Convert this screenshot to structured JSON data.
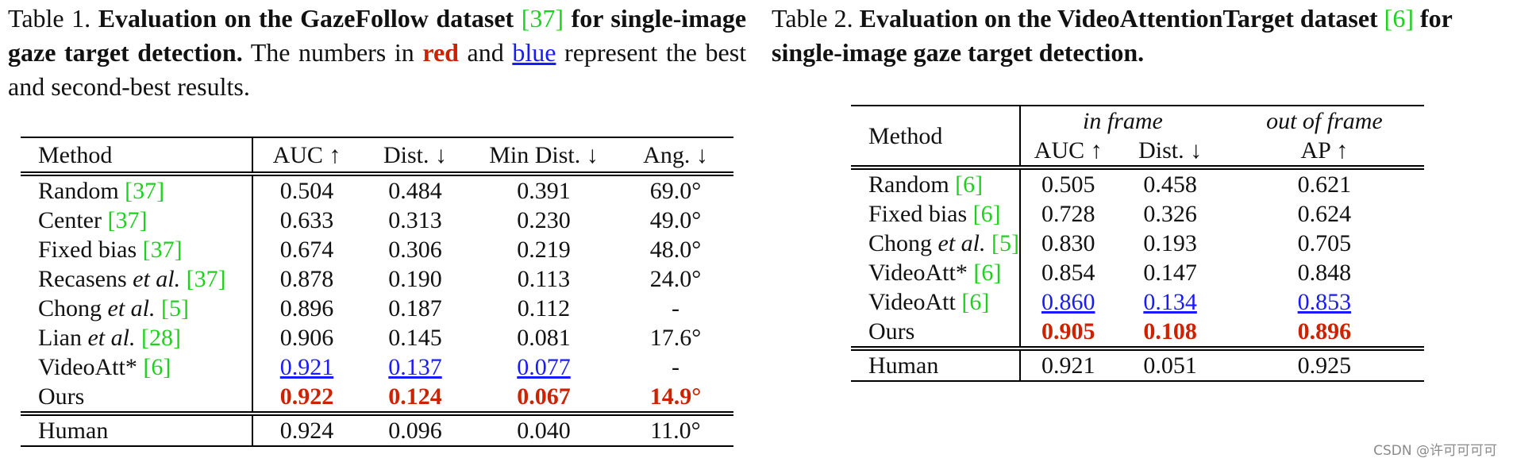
{
  "table1": {
    "caption": {
      "label": "Table 1.",
      "title_bold": "Evaluation on the GazeFollow dataset",
      "cite": "[37]",
      "title_bold_2": "for single-image gaze target detection.",
      "text_1": "The numbers in",
      "red_word": "red",
      "text_2": "and",
      "blue_word": "blue",
      "text_3": "represent the best and second-best results."
    },
    "headers": [
      "Method",
      "AUC ↑",
      "Dist. ↓",
      "Min Dist. ↓",
      "Ang. ↓"
    ],
    "rows": [
      {
        "name": "Random",
        "italic": "",
        "cite": "[37]",
        "auc": "0.504",
        "dist": "0.484",
        "min": "0.391",
        "ang": "69.0°"
      },
      {
        "name": "Center",
        "italic": "",
        "cite": "[37]",
        "auc": "0.633",
        "dist": "0.313",
        "min": "0.230",
        "ang": "49.0°"
      },
      {
        "name": "Fixed bias",
        "italic": "",
        "cite": "[37]",
        "auc": "0.674",
        "dist": "0.306",
        "min": "0.219",
        "ang": "48.0°"
      },
      {
        "name": "Recasens",
        "italic": "et al.",
        "cite": "[37]",
        "auc": "0.878",
        "dist": "0.190",
        "min": "0.113",
        "ang": "24.0°"
      },
      {
        "name": "Chong",
        "italic": "et al.",
        "cite": "[5]",
        "auc": "0.896",
        "dist": "0.187",
        "min": "0.112",
        "ang": "-"
      },
      {
        "name": "Lian",
        "italic": "et al.",
        "cite": "[28]",
        "auc": "0.906",
        "dist": "0.145",
        "min": "0.081",
        "ang": "17.6°"
      },
      {
        "name": "VideoAtt*",
        "italic": "",
        "cite": "[6]",
        "auc": "0.921",
        "dist": "0.137",
        "min": "0.077",
        "ang": "-"
      },
      {
        "name": "Ours",
        "italic": "",
        "cite": "",
        "auc": "0.922",
        "dist": "0.124",
        "min": "0.067",
        "ang": "14.9°"
      }
    ],
    "human": {
      "name": "Human",
      "auc": "0.924",
      "dist": "0.096",
      "min": "0.040",
      "ang": "11.0°"
    }
  },
  "table2": {
    "caption": {
      "label": "Table 2.",
      "title_bold": "Evaluation on the VideoAttentionTarget dataset",
      "cite": "[6]",
      "title_bold_2": "for single-image gaze target detection."
    },
    "group_headers": [
      "in frame",
      "out of frame"
    ],
    "headers": [
      "Method",
      "AUC ↑",
      "Dist. ↓",
      "AP ↑"
    ],
    "rows": [
      {
        "name": "Random",
        "italic": "",
        "cite": "[6]",
        "auc": "0.505",
        "dist": "0.458",
        "ap": "0.621"
      },
      {
        "name": "Fixed bias",
        "italic": "",
        "cite": "[6]",
        "auc": "0.728",
        "dist": "0.326",
        "ap": "0.624"
      },
      {
        "name": "Chong",
        "italic": "et al.",
        "cite": "[5]",
        "auc": "0.830",
        "dist": "0.193",
        "ap": "0.705"
      },
      {
        "name": "VideoAtt*",
        "italic": "",
        "cite": "[6]",
        "auc": "0.854",
        "dist": "0.147",
        "ap": "0.848"
      },
      {
        "name": "VideoAtt",
        "italic": "",
        "cite": "[6]",
        "auc": "0.860",
        "dist": "0.134",
        "ap": "0.853"
      },
      {
        "name": "Ours",
        "italic": "",
        "cite": "",
        "auc": "0.905",
        "dist": "0.108",
        "ap": "0.896"
      }
    ],
    "human": {
      "name": "Human",
      "auc": "0.921",
      "dist": "0.051",
      "ap": "0.925"
    }
  },
  "watermark": "CSDN @许可可可可",
  "colors": {
    "best": "#cc2200",
    "second": "#1a1aff",
    "citation": "#1fd11f"
  }
}
